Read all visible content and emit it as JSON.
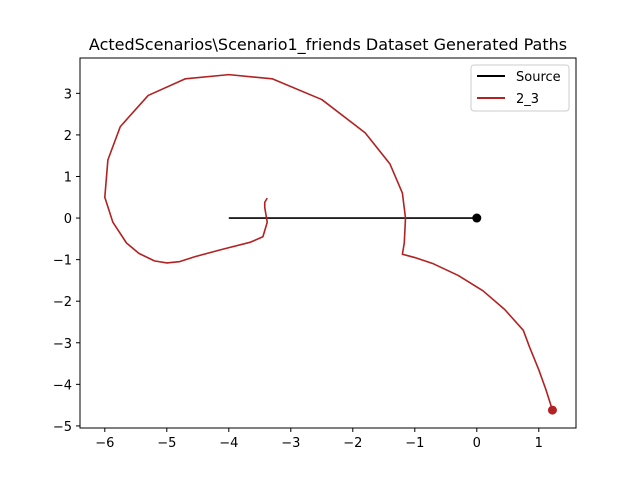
{
  "chart_data": {
    "type": "line",
    "title": "ActedScenarios\\Scenario1_friends Dataset Generated Paths",
    "xlabel": "",
    "ylabel": "",
    "xlim": [
      -6.4,
      1.6
    ],
    "ylim": [
      -5.05,
      3.85
    ],
    "xticks": [
      -6,
      -5,
      -4,
      -3,
      -2,
      -1,
      0,
      1
    ],
    "yticks": [
      -5,
      -4,
      -3,
      -2,
      -1,
      0,
      1,
      2,
      3
    ],
    "grid": false,
    "legend_position": "top-right",
    "series": [
      {
        "name": "Source",
        "color": "#000000",
        "x": [
          -4.0,
          0.0
        ],
        "y": [
          0.0,
          0.0
        ],
        "end_marker": [
          0.0,
          0.0
        ]
      },
      {
        "name": "2_3",
        "color": "#b22222",
        "x": [
          -3.38,
          -3.42,
          -3.42,
          -3.38,
          -3.45,
          -3.65,
          -4.1,
          -4.55,
          -4.8,
          -5.0,
          -5.2,
          -5.45,
          -5.65,
          -5.87,
          -6.0,
          -5.95,
          -5.75,
          -5.3,
          -4.7,
          -4.0,
          -3.3,
          -2.5,
          -1.8,
          -1.4,
          -1.2,
          -1.15,
          -1.17,
          -1.2,
          -1.0,
          -0.7,
          -0.3,
          0.1,
          0.45,
          0.75,
          0.85,
          1.0,
          1.12,
          1.22
        ],
        "y": [
          0.48,
          0.38,
          0.25,
          -0.1,
          -0.45,
          -0.58,
          -0.75,
          -0.93,
          -1.05,
          -1.08,
          -1.03,
          -0.85,
          -0.6,
          -0.1,
          0.5,
          1.4,
          2.2,
          2.95,
          3.35,
          3.45,
          3.35,
          2.85,
          2.05,
          1.3,
          0.6,
          0.0,
          -0.6,
          -0.87,
          -0.95,
          -1.1,
          -1.38,
          -1.75,
          -2.2,
          -2.7,
          -3.1,
          -3.65,
          -4.15,
          -4.62
        ],
        "end_marker": [
          1.22,
          -4.62
        ]
      }
    ]
  }
}
